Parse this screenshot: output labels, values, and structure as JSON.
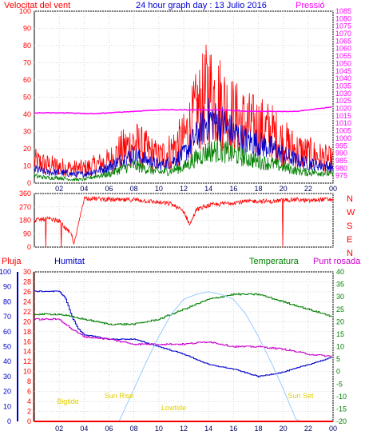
{
  "chart_data": [
    {
      "type": "line",
      "title": "24 hour graph day : 13 Julio 2016",
      "left_label": "Velocitat del vent",
      "right_label": "Pressió",
      "x_ticks": [
        "02",
        "04",
        "06",
        "08",
        "10",
        "12",
        "14",
        "16",
        "18",
        "20",
        "22",
        "00"
      ],
      "y_left": {
        "min": 0,
        "max": 100,
        "ticks": [
          0,
          10,
          20,
          30,
          40,
          50,
          60,
          70,
          80,
          90,
          100
        ]
      },
      "y_right": {
        "min": 970,
        "max": 1085,
        "ticks": [
          975,
          980,
          985,
          990,
          995,
          1000,
          1005,
          1010,
          1015,
          1020,
          1025,
          1030,
          1035,
          1040,
          1045,
          1050,
          1055,
          1060,
          1065,
          1070,
          1075,
          1080,
          1085
        ]
      },
      "series": [
        {
          "color": "#ff0000",
          "axis": "left",
          "x": [
            0,
            1,
            2,
            3,
            4,
            5,
            6,
            7,
            8,
            9,
            10,
            11,
            12,
            13,
            14,
            15,
            16,
            17,
            18,
            19,
            20,
            21,
            22,
            23,
            24
          ],
          "y": [
            12,
            10,
            9,
            8,
            8,
            10,
            12,
            18,
            22,
            18,
            14,
            18,
            24,
            38,
            50,
            44,
            36,
            32,
            30,
            28,
            22,
            18,
            16,
            14,
            12
          ]
        },
        {
          "color": "#0000cc",
          "axis": "left",
          "x": [
            0,
            1,
            2,
            3,
            4,
            5,
            6,
            7,
            8,
            9,
            10,
            11,
            12,
            13,
            14,
            15,
            16,
            17,
            18,
            19,
            20,
            21,
            22,
            23,
            24
          ],
          "y": [
            8,
            6,
            6,
            5,
            5,
            7,
            9,
            13,
            16,
            13,
            10,
            12,
            16,
            26,
            36,
            34,
            28,
            24,
            22,
            20,
            16,
            13,
            11,
            10,
            9
          ]
        },
        {
          "color": "#008000",
          "axis": "left",
          "x": [
            0,
            1,
            2,
            3,
            4,
            5,
            6,
            7,
            8,
            9,
            10,
            11,
            12,
            13,
            14,
            15,
            16,
            17,
            18,
            19,
            20,
            21,
            22,
            23,
            24
          ],
          "y": [
            4,
            3,
            3,
            2,
            2,
            4,
            5,
            8,
            10,
            8,
            6,
            7,
            9,
            14,
            18,
            18,
            16,
            14,
            12,
            11,
            9,
            7,
            6,
            6,
            5
          ]
        },
        {
          "color": "#ff00ff",
          "axis": "right",
          "x": [
            0,
            1,
            2,
            3,
            4,
            5,
            6,
            7,
            8,
            9,
            10,
            11,
            12,
            13,
            14,
            15,
            16,
            17,
            18,
            19,
            20,
            21,
            22,
            23,
            24
          ],
          "y": [
            1017,
            1017,
            1017,
            1017,
            1016.5,
            1016.5,
            1017,
            1017.5,
            1018,
            1018.5,
            1019,
            1019,
            1019,
            1019,
            1019,
            1019,
            1018.5,
            1018,
            1018,
            1018,
            1018,
            1018,
            1019,
            1020,
            1021
          ]
        }
      ]
    },
    {
      "type": "line",
      "x_ticks": [],
      "y_left": {
        "min": 0,
        "max": 360,
        "ticks": [
          0,
          45,
          90,
          135,
          180,
          225,
          270,
          315,
          360
        ]
      },
      "right_labels": [
        "N",
        "W",
        "S",
        "E",
        "N"
      ],
      "series": [
        {
          "color": "#ff0000",
          "name": "",
          "x": [
            0,
            1,
            2,
            3,
            3.2,
            4,
            5,
            6,
            7,
            8,
            9,
            10,
            11,
            12,
            12.5,
            13,
            14,
            15,
            16,
            17,
            18,
            19,
            20,
            21,
            22,
            23,
            24
          ],
          "y": [
            180,
            190,
            175,
            80,
            20,
            330,
            325,
            320,
            315,
            320,
            310,
            300,
            290,
            240,
            150,
            250,
            280,
            290,
            300,
            305,
            310,
            305,
            315,
            320,
            310,
            320,
            320
          ]
        }
      ]
    },
    {
      "type": "line",
      "labels": {
        "pluja": "Pluja",
        "humitat": "Humitat",
        "temperatura": "Temperatura",
        "punt_rosada": "Punt rosada"
      },
      "x_ticks": [
        "02",
        "04",
        "06",
        "08",
        "10",
        "12",
        "14",
        "16",
        "18",
        "20",
        "22",
        "00"
      ],
      "y_pluja": {
        "min": 0,
        "max": 30,
        "ticks": [
          0,
          2,
          4,
          6,
          8,
          10,
          12,
          14,
          16,
          18,
          20,
          22,
          24,
          26,
          28,
          30
        ]
      },
      "y_humitat": {
        "min": 0,
        "max": 100,
        "ticks": [
          0,
          10,
          20,
          30,
          40,
          50,
          60,
          70,
          80,
          90,
          100
        ]
      },
      "y_temp": {
        "min": -20,
        "max": 40,
        "ticks": [
          -20,
          -15,
          -10,
          -5,
          0,
          5,
          10,
          15,
          20,
          25,
          30,
          35,
          40
        ]
      },
      "annotations": [
        {
          "text": "Bigtide",
          "x": 2.7
        },
        {
          "text": "Sun Rise",
          "x": 6.8
        },
        {
          "text": "Lowtide",
          "x": 11.2
        },
        {
          "text": "Sun Set",
          "x": 21.4
        }
      ],
      "series": [
        {
          "color": "#0000cc",
          "axis": "humitat",
          "x": [
            0,
            1,
            2,
            2.5,
            3,
            3.5,
            4,
            6,
            8,
            10,
            12,
            14,
            16,
            18,
            20,
            22,
            24
          ],
          "y": [
            87,
            87,
            87,
            82,
            70,
            62,
            58,
            55,
            55,
            50,
            45,
            38,
            35,
            30,
            33,
            38,
            43
          ]
        },
        {
          "color": "#008000",
          "axis": "temp",
          "x": [
            0,
            2,
            4,
            6,
            8,
            10,
            12,
            14,
            16,
            18,
            20,
            22,
            24
          ],
          "y": [
            23,
            23,
            21,
            19,
            19,
            21,
            25,
            29,
            31,
            31,
            28,
            25,
            22
          ]
        },
        {
          "color": "#cc00cc",
          "axis": "temp",
          "x": [
            0,
            2,
            3,
            4,
            6,
            8,
            10,
            12,
            14,
            16,
            18,
            20,
            22,
            24
          ],
          "y": [
            21,
            21,
            17,
            14,
            13,
            11,
            11,
            11,
            12,
            10,
            10,
            9,
            7,
            6
          ]
        },
        {
          "color": "#99ccff",
          "axis": "temp",
          "x": [
            6.8,
            8,
            9,
            10,
            11,
            12,
            13,
            14,
            15,
            16,
            17,
            18,
            19,
            20,
            21,
            21.4
          ],
          "y": [
            -20,
            -7,
            4,
            14,
            23,
            29,
            31,
            32,
            31,
            29,
            23,
            14,
            4,
            -7,
            -19,
            -20
          ]
        },
        {
          "color": "#ff0000",
          "axis": "pluja",
          "x": [
            0,
            24
          ],
          "y": [
            0,
            0
          ]
        }
      ]
    }
  ]
}
